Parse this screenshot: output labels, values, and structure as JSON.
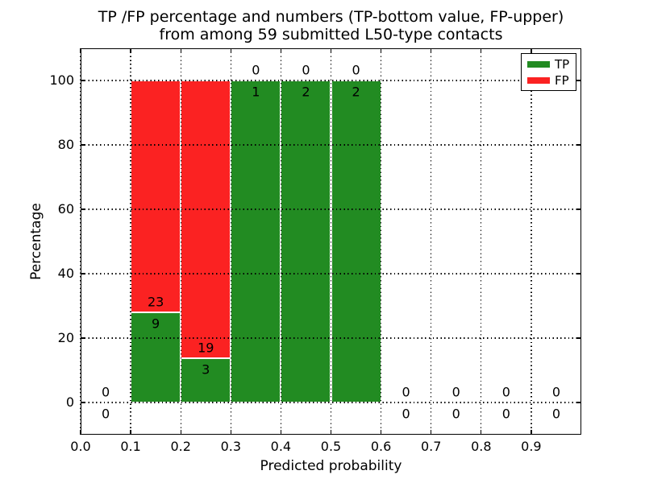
{
  "title": {
    "line1": "TP /FP percentage and numbers (TP-bottom value, FP-upper)",
    "line2": "from among 59 submitted L50-type contacts"
  },
  "colors": {
    "tp": "#228b22",
    "fp": "#fb2222",
    "grid": "#000000",
    "background": "#ffffff",
    "text": "#000000"
  },
  "chart_data": {
    "type": "bar",
    "stacked": true,
    "title": "TP /FP percentage and numbers (TP-bottom value, FP-upper) from among 59 submitted L50-type contacts",
    "xlabel": "Predicted probability",
    "ylabel": "Percentage",
    "xlim": [
      0.0,
      1.0
    ],
    "ylim": [
      -10,
      110
    ],
    "grid": true,
    "xticks": [
      {
        "label": "0.0",
        "value": 0.0
      },
      {
        "label": "0.1",
        "value": 0.1
      },
      {
        "label": "0.2",
        "value": 0.2
      },
      {
        "label": "0.3",
        "value": 0.3
      },
      {
        "label": "0.4",
        "value": 0.4
      },
      {
        "label": "0.5",
        "value": 0.5
      },
      {
        "label": "0.6",
        "value": 0.6
      },
      {
        "label": "0.7",
        "value": 0.7
      },
      {
        "label": "0.8",
        "value": 0.8
      },
      {
        "label": "0.9",
        "value": 0.9
      }
    ],
    "yticks": [
      {
        "label": "0",
        "value": 0
      },
      {
        "label": "20",
        "value": 20
      },
      {
        "label": "40",
        "value": 40
      },
      {
        "label": "60",
        "value": 60
      },
      {
        "label": "80",
        "value": 80
      },
      {
        "label": "100",
        "value": 100
      }
    ],
    "bin_width": 0.1,
    "total_contacts": 59,
    "series_names": [
      "TP",
      "FP"
    ],
    "bins": [
      {
        "x0": 0.0,
        "tp_count": 0,
        "fp_count": 0,
        "tp_pct": 0,
        "fp_pct": 0
      },
      {
        "x0": 0.1,
        "tp_count": 9,
        "fp_count": 23,
        "tp_pct": 28.125,
        "fp_pct": 71.875
      },
      {
        "x0": 0.2,
        "tp_count": 3,
        "fp_count": 19,
        "tp_pct": 13.636,
        "fp_pct": 86.364
      },
      {
        "x0": 0.3,
        "tp_count": 1,
        "fp_count": 0,
        "tp_pct": 100,
        "fp_pct": 0
      },
      {
        "x0": 0.4,
        "tp_count": 2,
        "fp_count": 0,
        "tp_pct": 100,
        "fp_pct": 0
      },
      {
        "x0": 0.5,
        "tp_count": 2,
        "fp_count": 0,
        "tp_pct": 100,
        "fp_pct": 0
      },
      {
        "x0": 0.6,
        "tp_count": 0,
        "fp_count": 0,
        "tp_pct": 0,
        "fp_pct": 0
      },
      {
        "x0": 0.7,
        "tp_count": 0,
        "fp_count": 0,
        "tp_pct": 0,
        "fp_pct": 0
      },
      {
        "x0": 0.8,
        "tp_count": 0,
        "fp_count": 0,
        "tp_pct": 0,
        "fp_pct": 0
      },
      {
        "x0": 0.9,
        "tp_count": 0,
        "fp_count": 0,
        "tp_pct": 0,
        "fp_pct": 0
      }
    ],
    "legend": {
      "position": "upper right",
      "entries": [
        {
          "label": "TP",
          "color": "#228b22"
        },
        {
          "label": "FP",
          "color": "#fb2222"
        }
      ]
    }
  }
}
